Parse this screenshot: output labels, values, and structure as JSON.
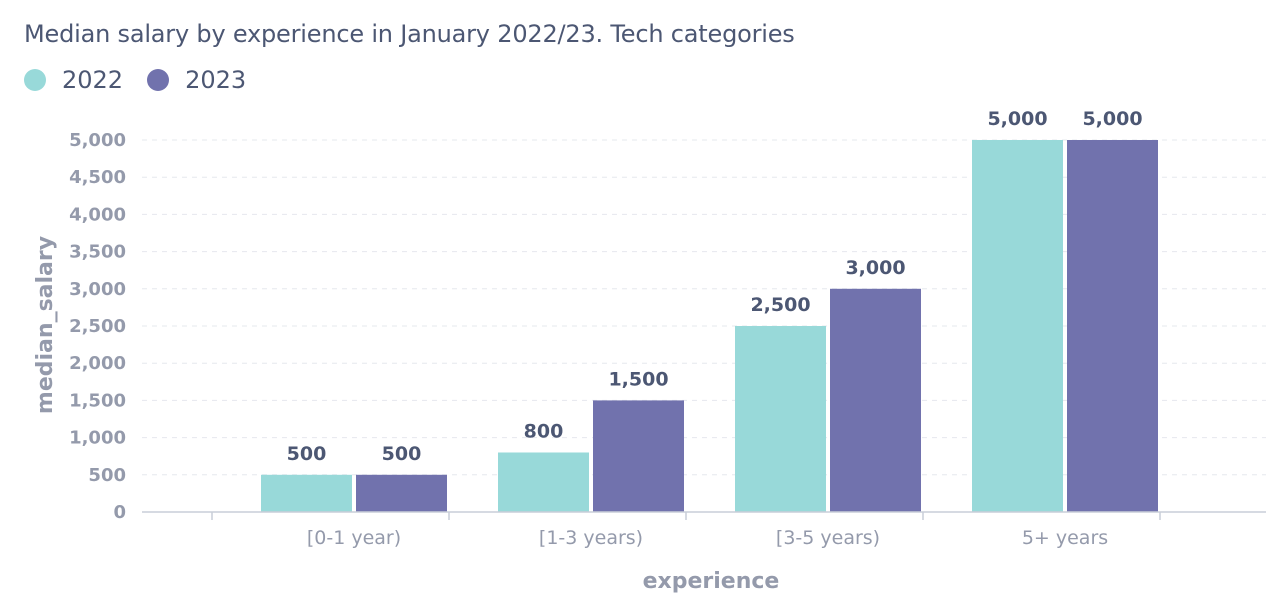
{
  "chart_data": {
    "type": "bar",
    "title": "Median salary by experience in January 2022/23. Tech categories",
    "xlabel": "experience",
    "ylabel": "median_salary",
    "categories": [
      "[0-1 year)",
      "[1-3 years)",
      "[3-5 years)",
      "5+ years"
    ],
    "series": [
      {
        "name": "2022",
        "color": "#98d9d9",
        "values": [
          500,
          800,
          2500,
          5000
        ],
        "labels": [
          "500",
          "800",
          "2,500",
          "5,000"
        ]
      },
      {
        "name": "2023",
        "color": "#7172ad",
        "values": [
          500,
          1500,
          3000,
          5000
        ],
        "labels": [
          "500",
          "1,500",
          "3,000",
          "5,000"
        ]
      }
    ],
    "yticks": [
      "0",
      "500",
      "1,000",
      "1,500",
      "2,000",
      "2,500",
      "3,000",
      "3,500",
      "4,000",
      "4,500",
      "5,000"
    ],
    "ylim": [
      0,
      5000
    ],
    "grid": true,
    "legend_position": "top-left"
  }
}
